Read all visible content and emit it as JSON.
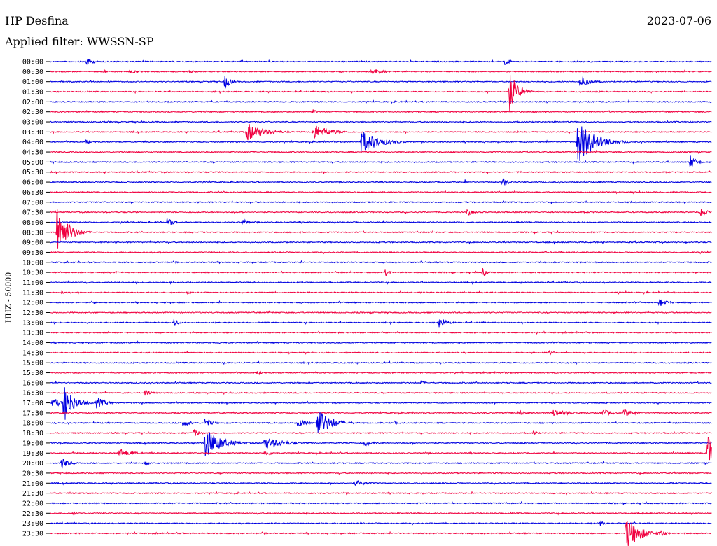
{
  "header": {
    "station": "HP Desfina",
    "date": "2023-07-06",
    "filter": "Applied filter: WWSSN-SP"
  },
  "chart_data": {
    "type": "line",
    "ylabel": "HHZ - 50000",
    "colors": {
      "even_row": "#0000e0",
      "odd_row": "#f00040"
    },
    "time_labels": [
      "00:00",
      "00:30",
      "01:00",
      "01:30",
      "02:00",
      "02:30",
      "03:00",
      "03:30",
      "04:00",
      "04:30",
      "05:00",
      "05:30",
      "06:00",
      "06:30",
      "07:00",
      "07:30",
      "08:00",
      "08:30",
      "09:00",
      "09:30",
      "10:00",
      "10:30",
      "11:00",
      "11:30",
      "12:00",
      "12:30",
      "13:00",
      "13:30",
      "14:00",
      "14:30",
      "15:00",
      "15:30",
      "16:00",
      "16:30",
      "17:00",
      "17:30",
      "18:00",
      "18:30",
      "19:00",
      "19:30",
      "20:00",
      "20:30",
      "21:00",
      "21:30",
      "22:00",
      "22:30",
      "23:00",
      "23:30"
    ],
    "x_range_minutes": [
      0,
      30
    ],
    "events": [
      {
        "row": 0,
        "minute": 1.6,
        "amp": 6,
        "dur": 0.6
      },
      {
        "row": 0,
        "minute": 20.6,
        "amp": 6,
        "dur": 0.4
      },
      {
        "row": 1,
        "minute": 2.4,
        "amp": 3,
        "dur": 0.3
      },
      {
        "row": 1,
        "minute": 3.6,
        "amp": 3,
        "dur": 0.8
      },
      {
        "row": 1,
        "minute": 6.3,
        "amp": 2,
        "dur": 0.7
      },
      {
        "row": 1,
        "minute": 14.5,
        "amp": 6,
        "dur": 0.8
      },
      {
        "row": 2,
        "minute": 7.9,
        "amp": 12,
        "dur": 0.4
      },
      {
        "row": 2,
        "minute": 24.0,
        "amp": 8,
        "dur": 0.8
      },
      {
        "row": 3,
        "minute": 20.8,
        "amp": 32,
        "dur": 0.6
      },
      {
        "row": 5,
        "minute": 11.9,
        "amp": 4,
        "dur": 0.3
      },
      {
        "row": 7,
        "minute": 8.9,
        "amp": 14,
        "dur": 1.3
      },
      {
        "row": 7,
        "minute": 11.9,
        "amp": 12,
        "dur": 1.2
      },
      {
        "row": 8,
        "minute": 1.6,
        "amp": 4,
        "dur": 0.3
      },
      {
        "row": 8,
        "minute": 14.1,
        "amp": 18,
        "dur": 1.3
      },
      {
        "row": 8,
        "minute": 23.9,
        "amp": 32,
        "dur": 1.3
      },
      {
        "row": 10,
        "minute": 29.0,
        "amp": 10,
        "dur": 0.5
      },
      {
        "row": 12,
        "minute": 18.8,
        "amp": 4,
        "dur": 0.2
      },
      {
        "row": 12,
        "minute": 20.5,
        "amp": 7,
        "dur": 0.4
      },
      {
        "row": 15,
        "minute": 18.9,
        "amp": 6,
        "dur": 0.4
      },
      {
        "row": 15,
        "minute": 29.5,
        "amp": 9,
        "dur": 0.4
      },
      {
        "row": 16,
        "minute": 5.3,
        "amp": 8,
        "dur": 0.4
      },
      {
        "row": 16,
        "minute": 8.7,
        "amp": 6,
        "dur": 0.4
      },
      {
        "row": 17,
        "minute": 0.3,
        "amp": 40,
        "dur": 0.8
      },
      {
        "row": 21,
        "minute": 2.9,
        "amp": 3,
        "dur": 0.3
      },
      {
        "row": 21,
        "minute": 15.2,
        "amp": 7,
        "dur": 0.3
      },
      {
        "row": 21,
        "minute": 19.6,
        "amp": 7,
        "dur": 0.3
      },
      {
        "row": 22,
        "minute": 5.4,
        "amp": 3,
        "dur": 0.3
      },
      {
        "row": 22,
        "minute": 9.1,
        "amp": 3,
        "dur": 0.3
      },
      {
        "row": 23,
        "minute": 0.5,
        "amp": 2,
        "dur": 0.6
      },
      {
        "row": 23,
        "minute": 6.2,
        "amp": 2,
        "dur": 0.5
      },
      {
        "row": 24,
        "minute": 27.6,
        "amp": 7,
        "dur": 0.6
      },
      {
        "row": 26,
        "minute": 5.6,
        "amp": 8,
        "dur": 0.3
      },
      {
        "row": 26,
        "minute": 17.6,
        "amp": 9,
        "dur": 0.6
      },
      {
        "row": 29,
        "minute": 22.6,
        "amp": 4,
        "dur": 0.4
      },
      {
        "row": 31,
        "minute": 9.4,
        "amp": 4,
        "dur": 0.3
      },
      {
        "row": 32,
        "minute": 16.8,
        "amp": 4,
        "dur": 0.3
      },
      {
        "row": 33,
        "minute": 4.3,
        "amp": 8,
        "dur": 0.4
      },
      {
        "row": 34,
        "minute": 0.1,
        "amp": 10,
        "dur": 0.5
      },
      {
        "row": 34,
        "minute": 0.6,
        "amp": 30,
        "dur": 0.7
      },
      {
        "row": 34,
        "minute": 2.1,
        "amp": 10,
        "dur": 0.6
      },
      {
        "row": 35,
        "minute": 21.2,
        "amp": 4,
        "dur": 0.8
      },
      {
        "row": 35,
        "minute": 22.8,
        "amp": 5,
        "dur": 1.6
      },
      {
        "row": 35,
        "minute": 25.0,
        "amp": 6,
        "dur": 0.7
      },
      {
        "row": 35,
        "minute": 26.0,
        "amp": 6,
        "dur": 0.9
      },
      {
        "row": 36,
        "minute": 6.0,
        "amp": 6,
        "dur": 0.6
      },
      {
        "row": 36,
        "minute": 7.0,
        "amp": 8,
        "dur": 0.5
      },
      {
        "row": 36,
        "minute": 11.2,
        "amp": 6,
        "dur": 0.8
      },
      {
        "row": 36,
        "minute": 12.1,
        "amp": 22,
        "dur": 1.0
      },
      {
        "row": 36,
        "minute": 15.6,
        "amp": 4,
        "dur": 0.3
      },
      {
        "row": 37,
        "minute": 6.5,
        "amp": 6,
        "dur": 0.5
      },
      {
        "row": 37,
        "minute": 21.9,
        "amp": 4,
        "dur": 0.3
      },
      {
        "row": 38,
        "minute": 7.0,
        "amp": 22,
        "dur": 1.2
      },
      {
        "row": 38,
        "minute": 9.7,
        "amp": 9,
        "dur": 1.5
      },
      {
        "row": 38,
        "minute": 14.2,
        "amp": 6,
        "dur": 0.6
      },
      {
        "row": 39,
        "minute": 3.1,
        "amp": 7,
        "dur": 1.0
      },
      {
        "row": 39,
        "minute": 9.7,
        "amp": 4,
        "dur": 0.8
      },
      {
        "row": 39,
        "minute": 29.8,
        "amp": 28,
        "dur": 0.8
      },
      {
        "row": 40,
        "minute": 0.5,
        "amp": 8,
        "dur": 0.6
      },
      {
        "row": 40,
        "minute": 4.3,
        "amp": 3,
        "dur": 0.5
      },
      {
        "row": 42,
        "minute": 13.8,
        "amp": 4,
        "dur": 1.2
      },
      {
        "row": 45,
        "minute": 1.0,
        "amp": 4,
        "dur": 0.3
      },
      {
        "row": 46,
        "minute": 24.9,
        "amp": 4,
        "dur": 0.4
      },
      {
        "row": 47,
        "minute": 26.1,
        "amp": 26,
        "dur": 1.0
      },
      {
        "row": 47,
        "minute": 27.6,
        "amp": 8,
        "dur": 0.4
      }
    ]
  }
}
